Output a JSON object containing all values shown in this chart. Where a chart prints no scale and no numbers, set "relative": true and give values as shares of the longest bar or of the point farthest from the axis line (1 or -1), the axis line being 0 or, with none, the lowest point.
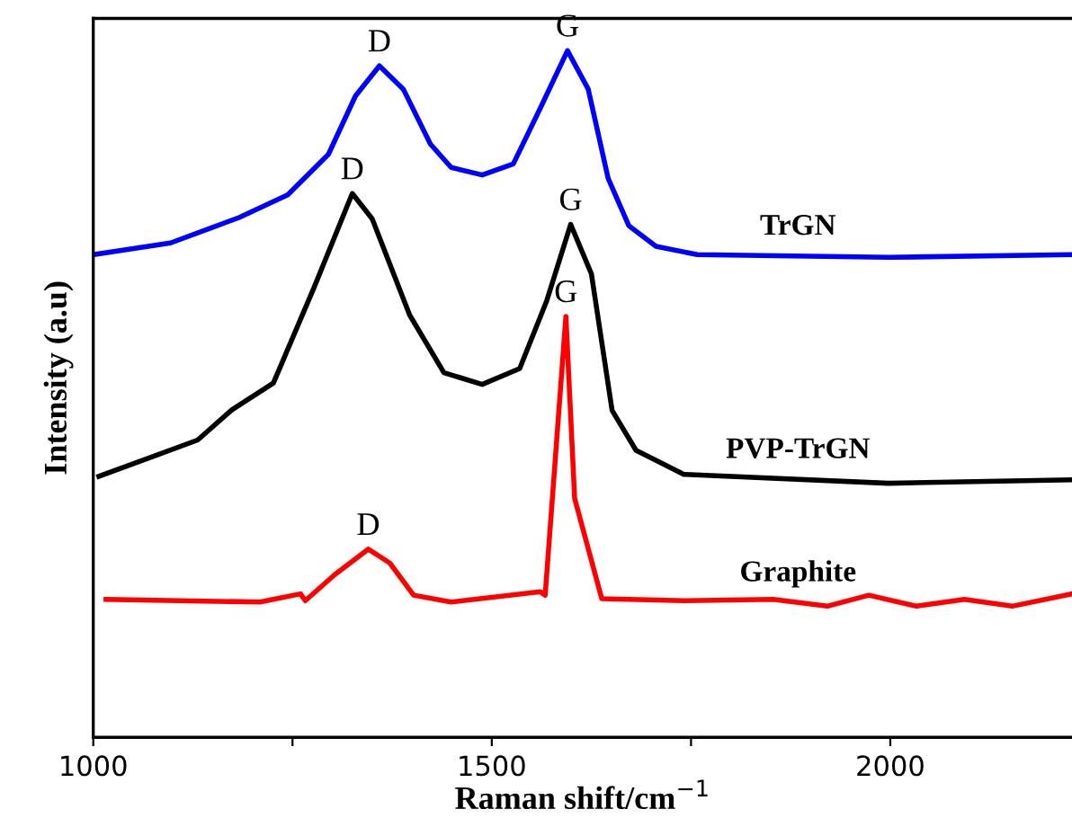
{
  "chart_data": {
    "type": "line",
    "relative": true,
    "xlabel": "Raman shift/cm$^{−1}$",
    "ylabel": "Intensity (a.u)",
    "xlim": [
      1000,
      2228
    ],
    "xticks": [
      1000,
      {
        "value": 1250,
        "label": null
      },
      1500,
      {
        "value": 1750,
        "label": null
      },
      2000
    ],
    "tick_labels": "x",
    "grid": false,
    "legend": false,
    "marker": "none",
    "line_style": "solid",
    "series": [
      {
        "name": "TrGN",
        "color": "#0000ff",
        "x": [
          1000,
          1097,
          1183,
          1244,
          1295,
          1329,
          1359,
          1389,
          1423,
          1449,
          1488,
          1527,
          1560,
          1595,
          1621,
          1646,
          1672,
          1706,
          1758,
          1998,
          2228
        ],
        "values": [
          0.703,
          0.72,
          0.757,
          0.79,
          0.849,
          0.934,
          0.978,
          0.944,
          0.864,
          0.83,
          0.819,
          0.835,
          0.914,
          1,
          0.944,
          0.814,
          0.745,
          0.715,
          0.703,
          0.699,
          0.703
        ]
      },
      {
        "name": "PVP-TrGN",
        "color": "#000000",
        "x": [
          1007,
          1131,
          1174,
          1226,
          1277,
          1325,
          1350,
          1397,
          1440,
          1488,
          1535,
          1569,
          1599,
          1625,
          1651,
          1681,
          1741,
          1998,
          2228
        ],
        "values": [
          0.38,
          0.433,
          0.477,
          0.516,
          0.655,
          0.792,
          0.755,
          0.615,
          0.531,
          0.514,
          0.537,
          0.636,
          0.747,
          0.675,
          0.476,
          0.418,
          0.383,
          0.37,
          0.375
        ]
      },
      {
        "name": "Graphite",
        "color": "#ff0000",
        "x": [
          1016,
          1209,
          1260,
          1266,
          1303,
          1345,
          1372,
          1402,
          1449,
          1561,
          1567,
          1593,
          1604,
          1638,
          1741,
          1853,
          1921,
          1973,
          2033,
          2093,
          2153,
          2228
        ],
        "values": [
          0.201,
          0.197,
          0.209,
          0.199,
          0.237,
          0.274,
          0.254,
          0.207,
          0.197,
          0.212,
          0.207,
          0.613,
          0.348,
          0.202,
          0.199,
          0.201,
          0.191,
          0.207,
          0.191,
          0.201,
          0.191,
          0.209
        ]
      }
    ],
    "annotations": [
      {
        "text": "D",
        "x": 1359,
        "y": 0.978
      },
      {
        "text": "G",
        "x": 1595,
        "y": 1
      },
      {
        "text": "D",
        "x": 1325,
        "y": 0.792
      },
      {
        "text": "G",
        "x": 1599,
        "y": 0.747
      },
      {
        "text": "G",
        "x": 1593,
        "y": 0.613
      },
      {
        "text": "D",
        "x": 1345,
        "y": 0.274
      }
    ]
  }
}
